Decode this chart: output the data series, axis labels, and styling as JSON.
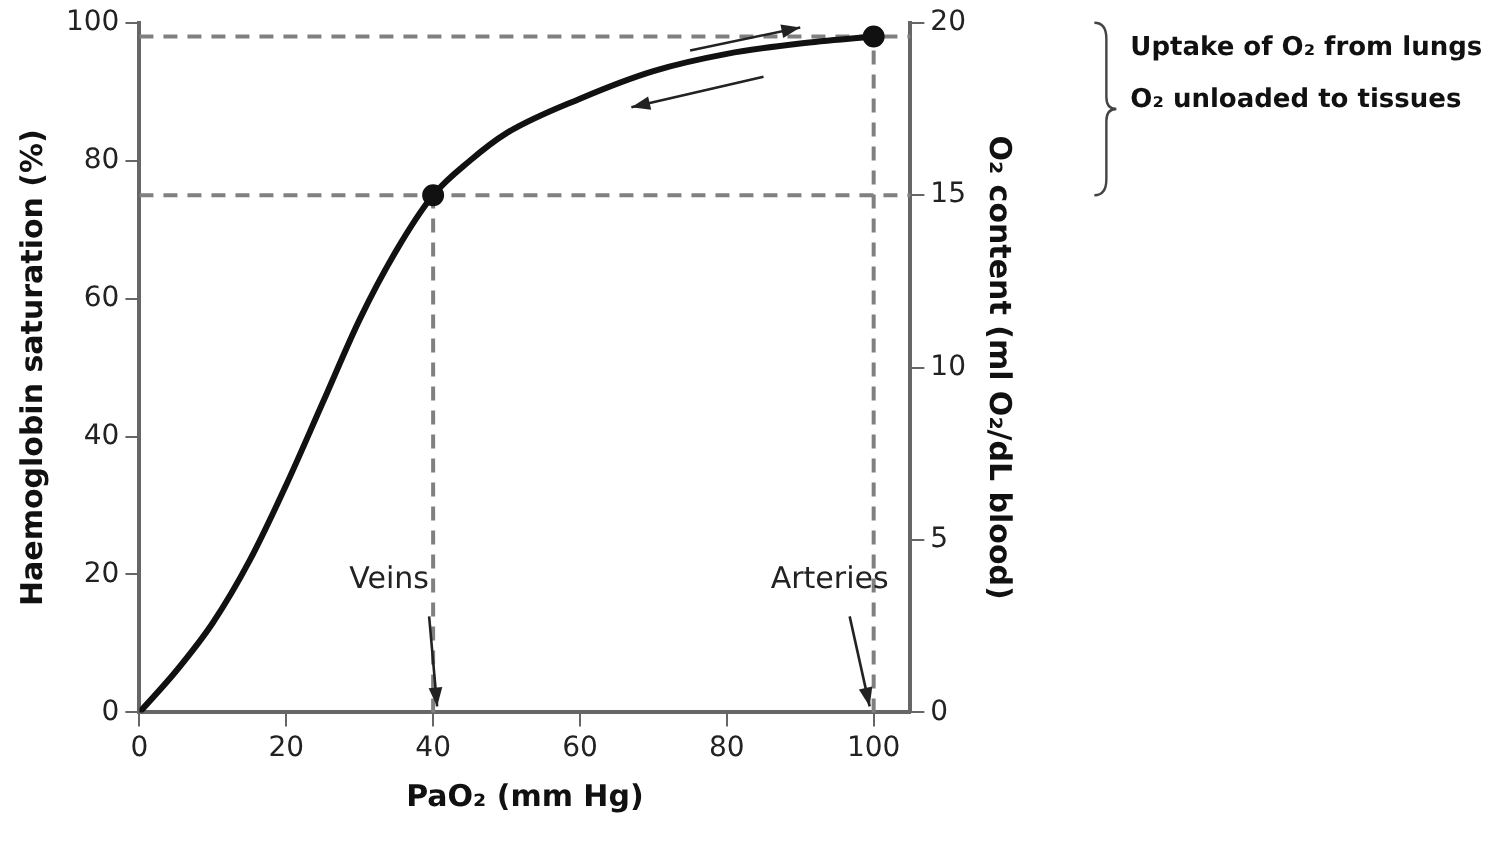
{
  "chart_data": {
    "type": "line",
    "xlabel": "PaO₂ (mm Hg)",
    "ylabel": "Haemoglobin saturation (%)",
    "y2label": "O₂ content (ml O₂/dL blood)",
    "xlim": [
      0,
      105
    ],
    "xticks": [
      0,
      20,
      40,
      60,
      80,
      100
    ],
    "ylim": [
      0,
      100
    ],
    "yticks": [
      0,
      20,
      40,
      60,
      80,
      100
    ],
    "y2lim": [
      0,
      20
    ],
    "y2ticks": [
      0,
      5,
      10,
      15,
      20
    ],
    "series": [
      {
        "color": "#111111",
        "marker": "none",
        "x": [
          0,
          5,
          10,
          15,
          20,
          25,
          30,
          35,
          40,
          45,
          50,
          60,
          70,
          80,
          90,
          100
        ],
        "values": [
          0,
          6,
          13,
          22,
          33,
          45,
          57,
          67,
          75,
          80,
          84,
          89,
          93,
          95.5,
          97,
          98
        ]
      },
      {
        "type": "scatter",
        "color": "#111111",
        "marker": "circle",
        "x": [
          40,
          100
        ],
        "values": [
          75,
          98
        ]
      }
    ],
    "ref_lines": [
      {
        "axis": "y",
        "value": 98,
        "color": "#808080",
        "line_style": "dashed"
      },
      {
        "axis": "y",
        "value": 75,
        "color": "#808080",
        "line_style": "dashed"
      },
      {
        "axis": "x",
        "value": 40,
        "color": "#808080",
        "line_style": "dashed"
      },
      {
        "axis": "x",
        "value": 100,
        "color": "#808080",
        "line_style": "dashed"
      }
    ],
    "annotations": [
      {
        "text": "Veins",
        "x": 40,
        "y": 0
      },
      {
        "text": "Arteries",
        "x": 100,
        "y": 0
      },
      "Uptake of O₂ from lungs",
      "O₂ unloaded to tissues"
    ],
    "grid": false,
    "legend": false
  }
}
